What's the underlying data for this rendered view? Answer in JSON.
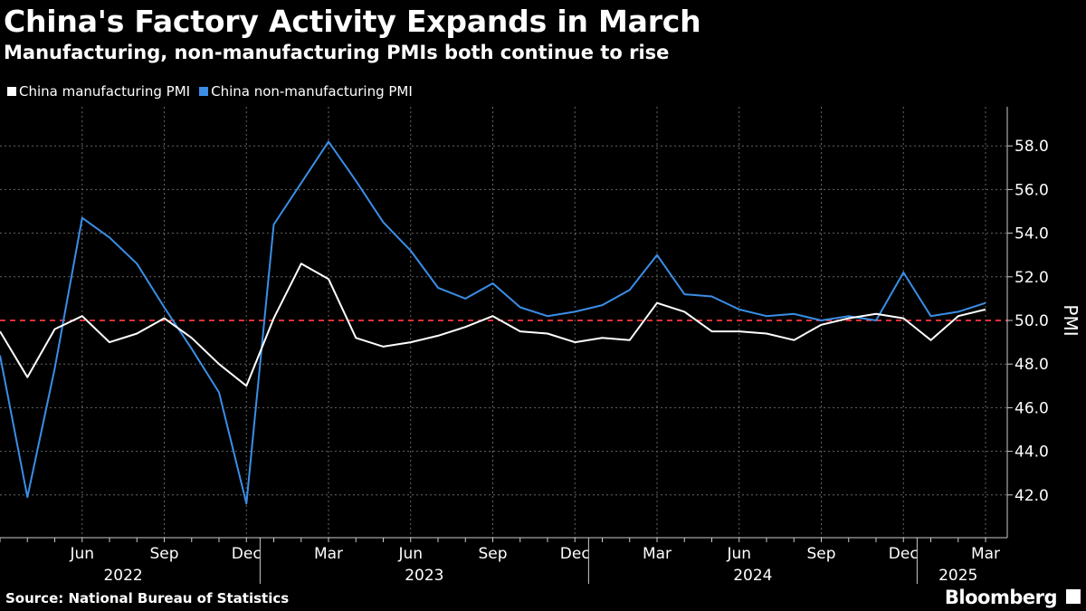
{
  "title": "China's Factory Activity Expands in March",
  "subtitle": "Manufacturing, non-manufacturing PMIs both continue to rise",
  "source": "Source: National Bureau of Statistics",
  "brand": "Bloomberg",
  "colors": {
    "background": "#000000",
    "manufacturing": "#ffffff",
    "non_manufacturing": "#3a8ee6",
    "reference_line": "#e0303a",
    "grid": "#666666"
  },
  "chart_data": {
    "type": "line",
    "title": "China's Factory Activity Expands in March",
    "ylabel": "PMI",
    "xlabel": "",
    "ylim": [
      40.0,
      60.0
    ],
    "yticks": [
      42.0,
      44.0,
      46.0,
      48.0,
      50.0,
      52.0,
      54.0,
      56.0,
      58.0
    ],
    "ytick_labels": [
      "42.0",
      "44.0",
      "46.0",
      "48.0",
      "50.0",
      "52.0",
      "54.0",
      "56.0",
      "58.0"
    ],
    "reference_line": 50.0,
    "legend_position": "top-left",
    "grid": true,
    "x": [
      "2022-03",
      "2022-04",
      "2022-05",
      "2022-06",
      "2022-07",
      "2022-08",
      "2022-09",
      "2022-10",
      "2022-11",
      "2022-12",
      "2023-01",
      "2023-02",
      "2023-03",
      "2023-04",
      "2023-05",
      "2023-06",
      "2023-07",
      "2023-08",
      "2023-09",
      "2023-10",
      "2023-11",
      "2023-12",
      "2024-01",
      "2024-02",
      "2024-03",
      "2024-04",
      "2024-05",
      "2024-06",
      "2024-07",
      "2024-08",
      "2024-09",
      "2024-10",
      "2024-11",
      "2024-12",
      "2025-01",
      "2025-02",
      "2025-03"
    ],
    "series": [
      {
        "name": "China manufacturing PMI",
        "values": [
          49.5,
          47.4,
          49.6,
          50.2,
          49.0,
          49.4,
          50.1,
          49.2,
          48.0,
          47.0,
          50.1,
          52.6,
          51.9,
          49.2,
          48.8,
          49.0,
          49.3,
          49.7,
          50.2,
          49.5,
          49.4,
          49.0,
          49.2,
          49.1,
          50.8,
          50.4,
          49.5,
          49.5,
          49.4,
          49.1,
          49.8,
          50.1,
          50.3,
          50.1,
          49.1,
          50.2,
          50.5
        ]
      },
      {
        "name": "China non-manufacturing PMI",
        "values": [
          48.4,
          41.9,
          47.8,
          54.7,
          53.8,
          52.6,
          50.6,
          48.7,
          46.7,
          41.6,
          54.4,
          56.3,
          58.2,
          56.4,
          54.5,
          53.2,
          51.5,
          51.0,
          51.7,
          50.6,
          50.2,
          50.4,
          50.7,
          51.4,
          53.0,
          51.2,
          51.1,
          50.5,
          50.2,
          50.3,
          50.0,
          50.2,
          50.0,
          52.2,
          50.2,
          50.4,
          50.8
        ]
      }
    ],
    "xtick_labels": [
      {
        "x": "2022-06",
        "label": "Jun"
      },
      {
        "x": "2022-09",
        "label": "Sep"
      },
      {
        "x": "2022-12",
        "label": "Dec"
      },
      {
        "x": "2023-03",
        "label": "Mar"
      },
      {
        "x": "2023-06",
        "label": "Jun"
      },
      {
        "x": "2023-09",
        "label": "Sep"
      },
      {
        "x": "2023-12",
        "label": "Dec"
      },
      {
        "x": "2024-03",
        "label": "Mar"
      },
      {
        "x": "2024-06",
        "label": "Jun"
      },
      {
        "x": "2024-09",
        "label": "Sep"
      },
      {
        "x": "2024-12",
        "label": "Dec"
      },
      {
        "x": "2025-03",
        "label": "Mar"
      }
    ],
    "year_labels": [
      {
        "label": "2022",
        "from": "2022-03",
        "to": "2022-12"
      },
      {
        "label": "2023",
        "from": "2023-01",
        "to": "2023-12"
      },
      {
        "label": "2024",
        "from": "2024-01",
        "to": "2024-12"
      },
      {
        "label": "2025",
        "from": "2025-01",
        "to": "2025-03"
      }
    ]
  }
}
